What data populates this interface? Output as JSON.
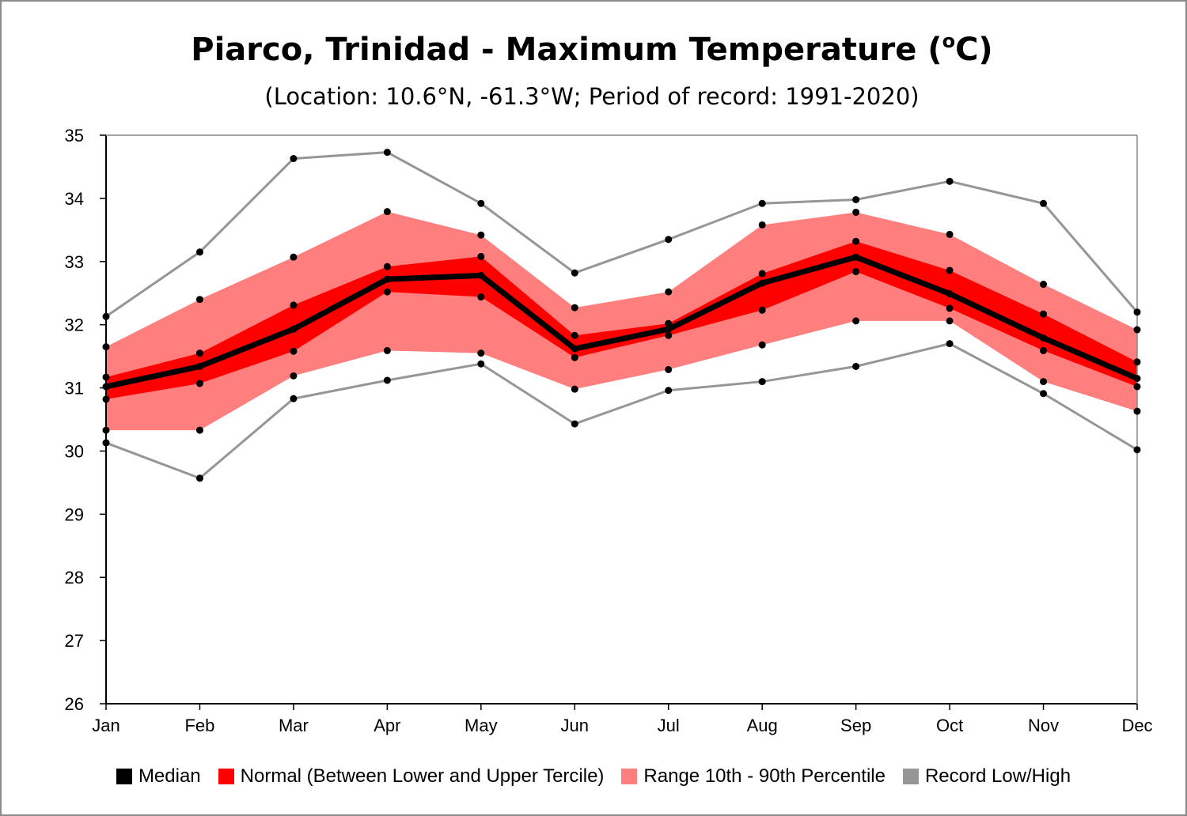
{
  "chart_data": {
    "type": "line",
    "title_main": "Piarco, Trinidad - Maximum Temperature (",
    "title_sup": "o",
    "title_end": "C)",
    "subtitle": "(Location: 10.6°N, -61.3°W; Period of record: 1991-2020)",
    "categories": [
      "Jan",
      "Feb",
      "Mar",
      "Apr",
      "May",
      "Jun",
      "Jul",
      "Aug",
      "Sep",
      "Oct",
      "Nov",
      "Dec"
    ],
    "ylim": [
      26,
      35
    ],
    "yticks": [
      26,
      27,
      28,
      29,
      30,
      31,
      32,
      33,
      34,
      35
    ],
    "grid": false,
    "legend_position": "bottom",
    "series": [
      {
        "name": "Median",
        "color": "#000000",
        "values": [
          31.02,
          31.34,
          31.93,
          32.72,
          32.78,
          31.62,
          31.93,
          32.66,
          33.07,
          32.49,
          31.79,
          31.15
        ]
      },
      {
        "name": "Normal (Between Lower and Upper Tercile)",
        "color": "#ff0000",
        "lower": [
          30.82,
          31.07,
          31.58,
          32.52,
          32.44,
          31.48,
          31.83,
          32.23,
          32.84,
          32.26,
          31.59,
          31.02
        ],
        "upper": [
          31.17,
          31.55,
          32.31,
          32.92,
          33.08,
          31.83,
          32.02,
          32.81,
          33.32,
          32.86,
          32.17,
          31.41
        ]
      },
      {
        "name": "Range 10th - 90th Percentile",
        "color": "#ff7f7f",
        "lower": [
          30.33,
          30.33,
          31.19,
          31.59,
          31.55,
          30.98,
          31.29,
          31.68,
          32.06,
          32.06,
          31.1,
          30.63
        ],
        "upper": [
          31.65,
          32.4,
          33.07,
          33.79,
          33.42,
          32.27,
          32.52,
          33.58,
          33.78,
          33.43,
          32.64,
          31.92
        ]
      },
      {
        "name": "Record Low/High",
        "color": "#969696",
        "lower": [
          30.13,
          29.57,
          30.83,
          31.12,
          31.38,
          30.43,
          30.96,
          31.1,
          31.34,
          31.7,
          30.91,
          30.02
        ],
        "upper": [
          32.13,
          33.15,
          34.63,
          34.73,
          33.92,
          32.82,
          33.35,
          33.92,
          33.98,
          34.27,
          33.92,
          32.2
        ]
      }
    ]
  }
}
